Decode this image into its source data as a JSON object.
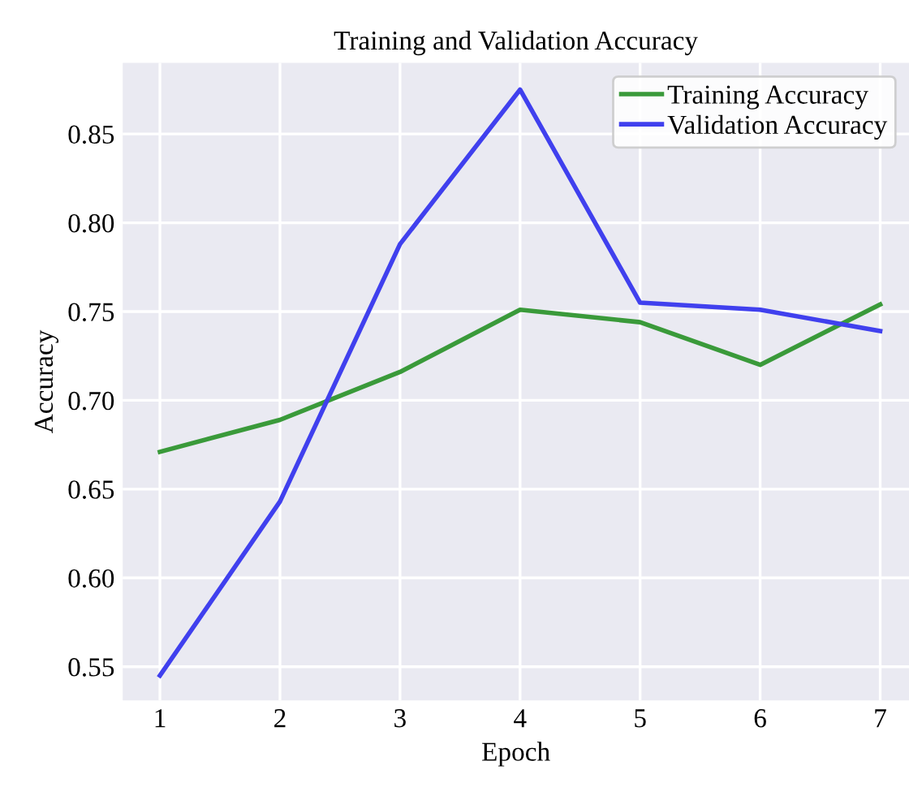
{
  "chart_data": {
    "type": "line",
    "title": "Training and Validation Accuracy",
    "xlabel": "Epoch",
    "ylabel": "Accuracy",
    "x": [
      1,
      2,
      3,
      4,
      5,
      6,
      7
    ],
    "series": [
      {
        "name": "Training Accuracy",
        "color": "#3a9a3a",
        "values": [
          0.671,
          0.689,
          0.716,
          0.751,
          0.744,
          0.72,
          0.754
        ]
      },
      {
        "name": "Validation Accuracy",
        "color": "#4040ee",
        "values": [
          0.545,
          0.643,
          0.788,
          0.875,
          0.755,
          0.751,
          0.739
        ]
      }
    ],
    "xlim": [
      0.69,
      7.24
    ],
    "ylim": [
      0.531,
      0.89
    ],
    "xticks": [
      1,
      2,
      3,
      4,
      5,
      6,
      7
    ],
    "yticks": [
      0.55,
      {
        "value": 0.6,
        "label": "0.60"
      },
      0.65,
      {
        "value": 0.7,
        "label": "0.70"
      },
      0.75,
      {
        "value": 0.8,
        "label": "0.80"
      },
      0.85
    ],
    "grid": true,
    "legend": "top right",
    "marker": "none",
    "line_style": "solid"
  }
}
